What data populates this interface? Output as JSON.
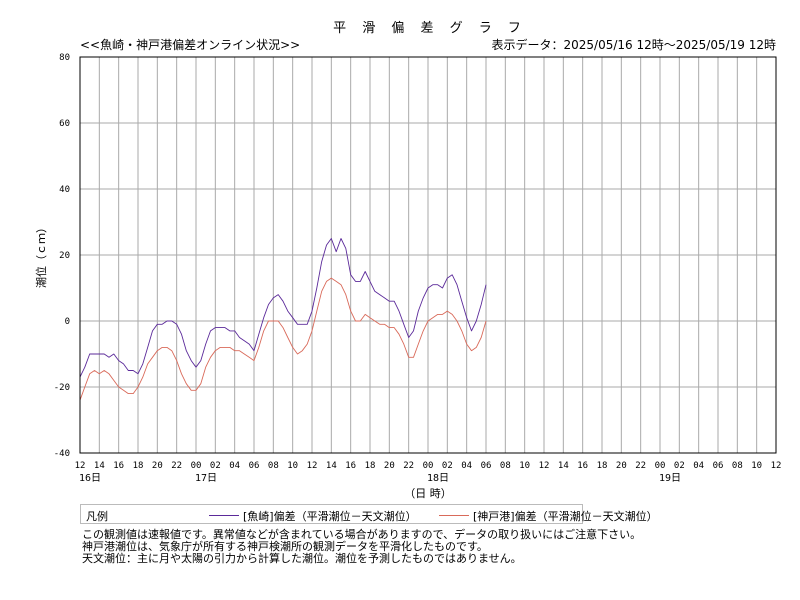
{
  "header": {
    "title": "平 滑 偏 差 グ ラ フ",
    "subtitle_left": "<<魚崎・神戸港偏差オンライン状況>>",
    "subtitle_right": "表示データ：2025/05/16 12時〜2025/05/19 12時"
  },
  "chart_data": {
    "type": "line",
    "ylabel": "潮位（ｃｍ）",
    "xlabel": "（日 時）",
    "ylim": [
      -40,
      80
    ],
    "yticks": [
      -40,
      -20,
      0,
      20,
      40,
      60,
      80
    ],
    "xlim_hours": [
      0,
      72
    ],
    "xticks": [
      "12",
      "14",
      "16",
      "18",
      "20",
      "22",
      "00",
      "02",
      "04",
      "06",
      "08",
      "10",
      "12",
      "14",
      "16",
      "18",
      "20",
      "22",
      "00",
      "02",
      "04",
      "06",
      "08",
      "10",
      "12",
      "14",
      "16",
      "18",
      "20",
      "22",
      "00",
      "02",
      "04",
      "06",
      "08",
      "10",
      "12"
    ],
    "day_labels": [
      {
        "text": "16日",
        "tick_index": 0
      },
      {
        "text": "17日",
        "tick_index": 6
      },
      {
        "text": "18日",
        "tick_index": 18
      },
      {
        "text": "19日",
        "tick_index": 30
      }
    ],
    "grid": true,
    "series": [
      {
        "name": "[魚崎]偏差（平滑潮位－天文潮位）",
        "color": "#5b2a9a",
        "x": [
          0,
          0.5,
          1,
          1.5,
          2,
          2.5,
          3,
          3.5,
          4,
          4.5,
          5,
          5.5,
          6,
          6.5,
          7,
          7.5,
          8,
          8.5,
          9,
          9.5,
          10,
          10.5,
          11,
          11.5,
          12,
          12.5,
          13,
          13.5,
          14,
          14.5,
          15,
          15.5,
          16,
          16.5,
          17,
          17.5,
          18,
          18.5,
          19,
          19.5,
          20,
          20.5,
          21,
          21.5,
          22,
          22.5,
          23,
          23.5,
          24,
          24.5,
          25,
          25.5,
          26,
          26.5,
          27,
          27.5,
          28,
          28.5,
          29,
          29.5,
          30,
          30.5,
          31,
          31.5,
          32,
          32.5,
          33,
          33.5,
          34,
          34.5,
          35,
          35.5,
          36
        ],
        "values": [
          -17,
          -14,
          -10,
          -10,
          -10,
          -10,
          -11,
          -10,
          -12,
          -13,
          -15,
          -15,
          -16,
          -13,
          -8,
          -3,
          -1,
          -1,
          0,
          0,
          -1,
          -4,
          -9,
          -12,
          -14,
          -12,
          -7,
          -3,
          -2,
          -2,
          -2,
          -3,
          -3,
          -5,
          -6,
          -7,
          -9,
          -4,
          1,
          5,
          7,
          8,
          6,
          3,
          1,
          -1,
          -1,
          -1,
          3,
          10,
          18,
          23,
          25,
          21,
          25,
          22,
          14,
          12,
          12,
          15,
          12,
          9,
          8,
          7,
          6,
          6,
          3,
          -1,
          -5,
          -3,
          3,
          7,
          10
        ],
        "extra": {
          "x": [
            36.5,
            37,
            37.5,
            38,
            38.5,
            39,
            39.5,
            40,
            40.5,
            41,
            41.5,
            42
          ],
          "values": [
            11,
            11,
            10,
            13,
            14,
            11,
            6,
            1,
            -3,
            0,
            5,
            11
          ]
        }
      },
      {
        "name": "[神戸港]偏差（平滑潮位－天文潮位）",
        "color": "#d96a5a",
        "x": [
          0,
          0.5,
          1,
          1.5,
          2,
          2.5,
          3,
          3.5,
          4,
          4.5,
          5,
          5.5,
          6,
          6.5,
          7,
          7.5,
          8,
          8.5,
          9,
          9.5,
          10,
          10.5,
          11,
          11.5,
          12,
          12.5,
          13,
          13.5,
          14,
          14.5,
          15,
          15.5,
          16,
          16.5,
          17,
          17.5,
          18,
          18.5,
          19,
          19.5,
          20,
          20.5,
          21,
          21.5,
          22,
          22.5,
          23,
          23.5,
          24,
          24.5,
          25,
          25.5,
          26,
          26.5,
          27,
          27.5,
          28,
          28.5,
          29,
          29.5,
          30,
          30.5,
          31,
          31.5,
          32,
          32.5,
          33,
          33.5,
          34,
          34.5,
          35,
          35.5,
          36
        ],
        "values": [
          -24,
          -20,
          -16,
          -15,
          -16,
          -15,
          -16,
          -18,
          -20,
          -21,
          -22,
          -22,
          -20,
          -17,
          -13,
          -11,
          -9,
          -8,
          -8,
          -9,
          -12,
          -16,
          -19,
          -21,
          -21,
          -19,
          -14,
          -11,
          -9,
          -8,
          -8,
          -8,
          -9,
          -9,
          -10,
          -11,
          -12,
          -8,
          -3,
          0,
          0,
          0,
          -2,
          -5,
          -8,
          -10,
          -9,
          -7,
          -3,
          3,
          9,
          12,
          13,
          12,
          11,
          8,
          3,
          0,
          0,
          2,
          1,
          0,
          -1,
          -1,
          -2,
          -2,
          -4,
          -7,
          -11,
          -11,
          -7,
          -3,
          0
        ],
        "extra": {
          "x": [
            36.5,
            37,
            37.5,
            38,
            38.5,
            39,
            39.5,
            40,
            40.5,
            41,
            41.5,
            42
          ],
          "values": [
            1,
            2,
            2,
            3,
            2,
            0,
            -3,
            -7,
            -9,
            -8,
            -5,
            0
          ]
        }
      }
    ]
  },
  "legend": {
    "title": "凡例",
    "items": [
      {
        "label": "[魚崎]偏差（平滑潮位－天文潮位）",
        "color": "#5b2a9a"
      },
      {
        "label": "[神戸港]偏差（平滑潮位－天文潮位）",
        "color": "#d96a5a"
      }
    ]
  },
  "notes": [
    "この観測値は速報値です。異常値などが含まれている場合がありますので、データの取り扱いにはご注意下さい。",
    "神戸港潮位は、気象庁が所有する神戸検潮所の観測データを平滑化したものです。",
    "天文潮位：主に月や太陽の引力から計算した潮位。潮位を予測したものではありません。"
  ]
}
